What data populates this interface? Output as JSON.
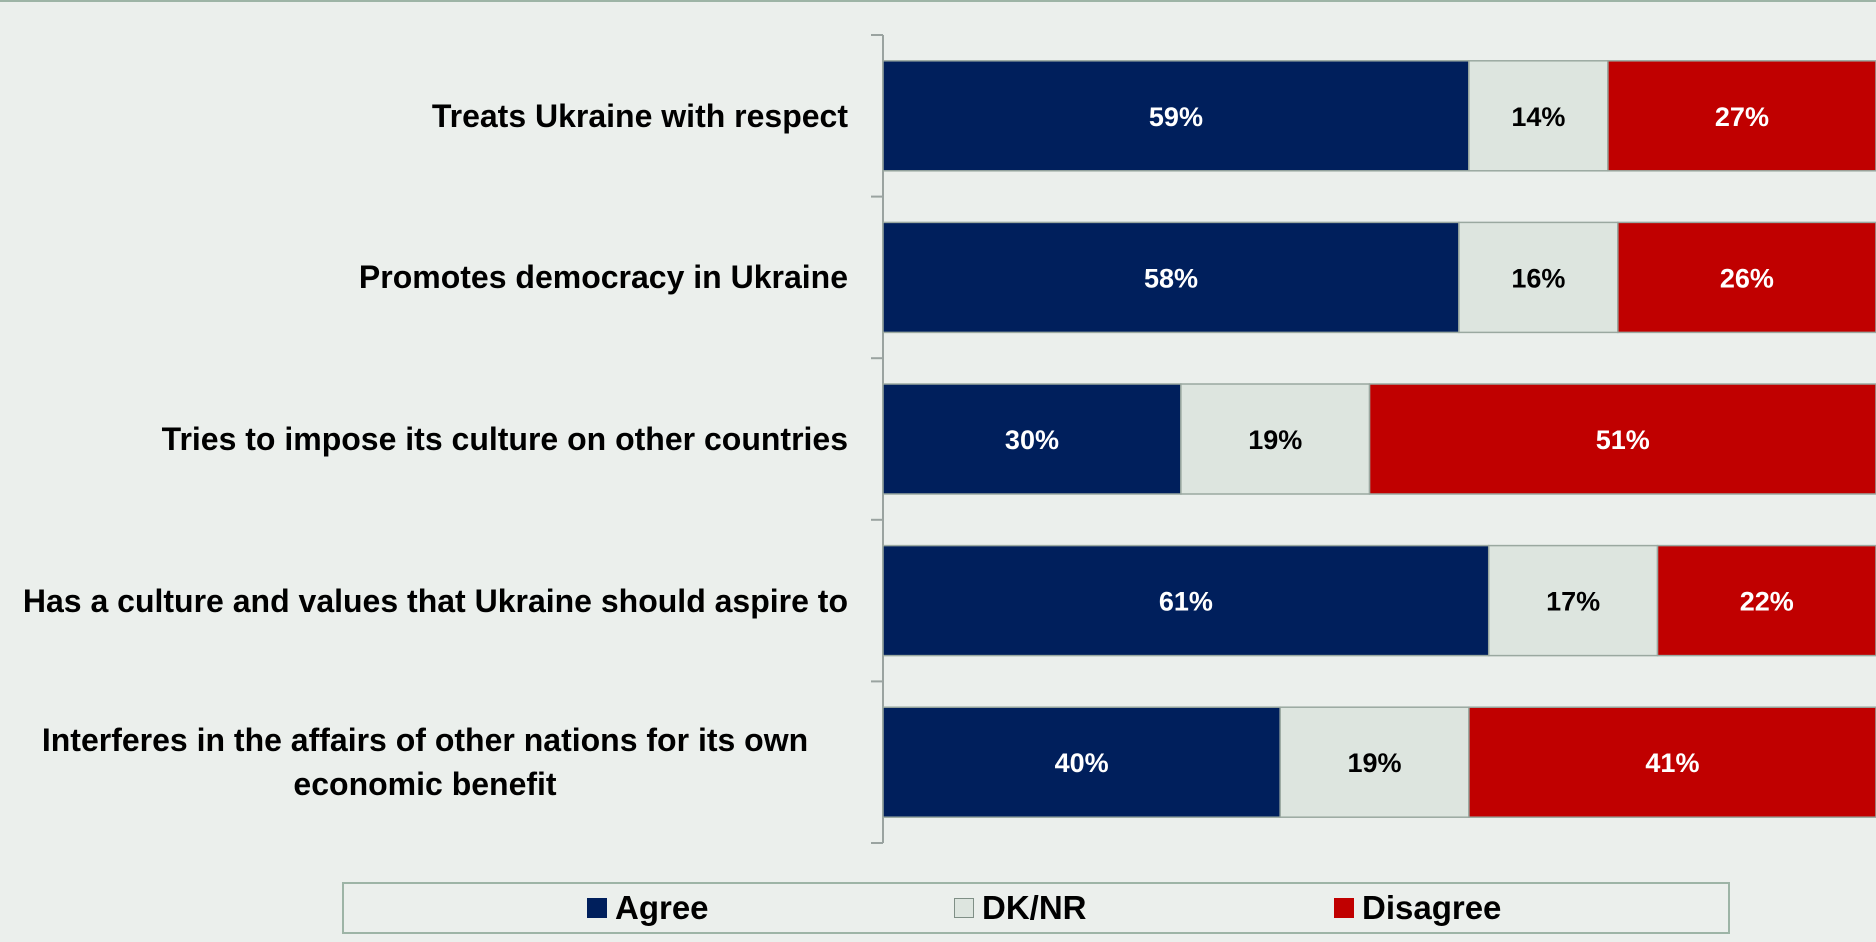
{
  "chart_data": {
    "type": "bar",
    "orientation": "horizontal",
    "stacked": true,
    "categories": [
      "Treats Ukraine with respect",
      "Promotes democracy in Ukraine",
      "Tries to impose its culture on other countries",
      "Has a culture and values that Ukraine should aspire to",
      "Interferes in the affairs of other nations for its own economic benefit"
    ],
    "series": [
      {
        "name": "Agree",
        "values": [
          59,
          58,
          30,
          61,
          40
        ],
        "labels": [
          "59%",
          "58%",
          "30%",
          "61%",
          "40%"
        ],
        "color": "#001f5c"
      },
      {
        "name": "DK/NR",
        "values": [
          14,
          16,
          19,
          17,
          19
        ],
        "labels": [
          "14%",
          "16%",
          "19%",
          "17%",
          "19%"
        ],
        "color": "#dde5df"
      },
      {
        "name": "Disagree",
        "values": [
          27,
          26,
          51,
          22,
          41
        ],
        "labels": [
          "27%",
          "26%",
          "51%",
          "22%",
          "41%"
        ],
        "color": "#c00000"
      }
    ],
    "xlim": [
      0,
      100
    ],
    "legend_position": "bottom",
    "grid": false
  },
  "legend": {
    "items": [
      {
        "label": "Agree",
        "color": "#001f5c"
      },
      {
        "label": "DK/NR",
        "color": "#dde5df"
      },
      {
        "label": "Disagree",
        "color": "#c00000"
      }
    ]
  }
}
